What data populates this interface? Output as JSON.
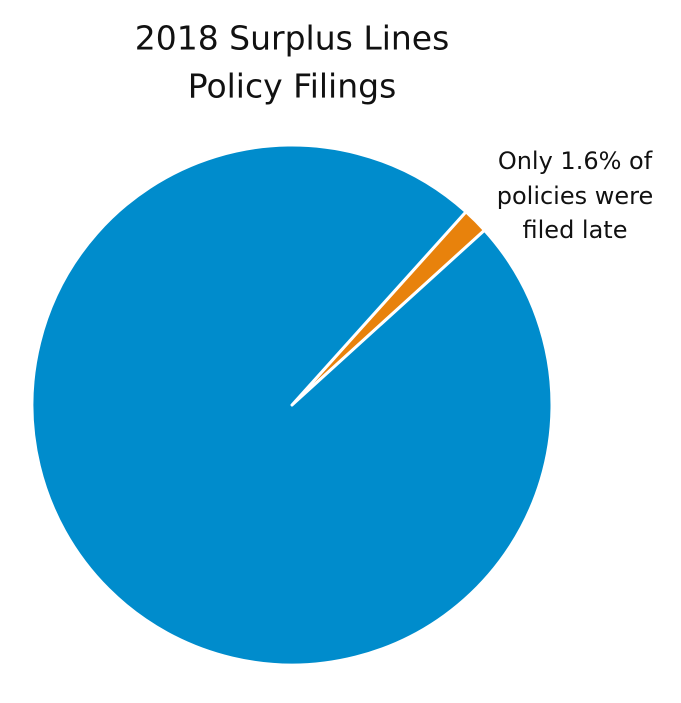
{
  "chart_data": {
    "type": "pie",
    "title": [
      "2018 Surplus Lines",
      "Policy Filings"
    ],
    "annotation": [
      "Only 1.6% of",
      "policies were",
      "filed late"
    ],
    "categories": [
      null,
      null
    ],
    "values": [
      1.6,
      98.4
    ],
    "colors": [
      "#e8820c",
      "#008ccc"
    ]
  }
}
